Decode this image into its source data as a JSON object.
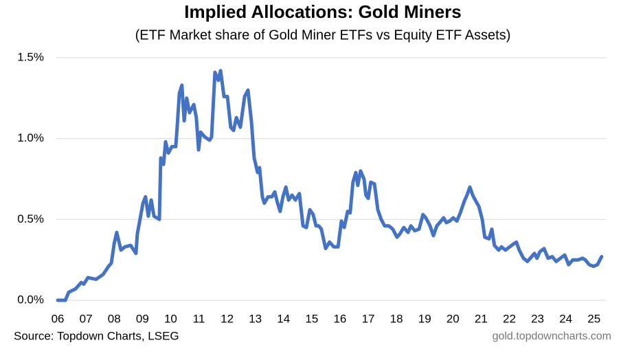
{
  "chart_data": {
    "type": "line",
    "title": "Implied Allocations: Gold Miners",
    "subtitle": "(ETF Market share of Gold Miner ETFs vs Equity ETF Assets)",
    "source": "Source: Topdown Charts, LSEG",
    "watermark": "gold.topdowncharts.com",
    "x": [
      2006.0,
      2006.27,
      2006.39,
      2006.63,
      2006.83,
      2006.92,
      2007.07,
      2007.36,
      2007.61,
      2007.8,
      2007.9,
      2008.0,
      2008.09,
      2008.24,
      2008.38,
      2008.58,
      2008.77,
      2008.82,
      2009.02,
      2009.11,
      2009.21,
      2009.31,
      2009.41,
      2009.6,
      2009.65,
      2009.75,
      2009.82,
      2009.92,
      2010.04,
      2010.18,
      2010.23,
      2010.31,
      2010.4,
      2010.48,
      2010.57,
      2010.67,
      2010.82,
      2010.91,
      2010.99,
      2011.06,
      2011.21,
      2011.38,
      2011.45,
      2011.57,
      2011.69,
      2011.77,
      2011.89,
      2012.01,
      2012.13,
      2012.23,
      2012.33,
      2012.47,
      2012.62,
      2012.74,
      2012.86,
      2012.96,
      2013.08,
      2013.15,
      2013.25,
      2013.32,
      2013.45,
      2013.59,
      2013.69,
      2013.79,
      2013.88,
      2013.98,
      2014.08,
      2014.18,
      2014.3,
      2014.42,
      2014.56,
      2014.69,
      2014.81,
      2014.93,
      2015.05,
      2015.15,
      2015.25,
      2015.34,
      2015.49,
      2015.63,
      2015.78,
      2015.93,
      2016.05,
      2016.15,
      2016.27,
      2016.36,
      2016.46,
      2016.56,
      2016.63,
      2016.73,
      2016.85,
      2016.92,
      2017.0,
      2017.09,
      2017.22,
      2017.34,
      2017.46,
      2017.58,
      2017.73,
      2017.87,
      2018.02,
      2018.12,
      2018.26,
      2018.41,
      2018.51,
      2018.65,
      2018.8,
      2018.94,
      2019.04,
      2019.19,
      2019.31,
      2019.43,
      2019.58,
      2019.67,
      2019.77,
      2019.89,
      2020.01,
      2020.14,
      2020.26,
      2020.4,
      2020.5,
      2020.6,
      2020.7,
      2020.79,
      2020.92,
      2021.04,
      2021.13,
      2021.28,
      2021.38,
      2021.47,
      2021.62,
      2021.72,
      2021.86,
      2022.01,
      2022.16,
      2022.25,
      2022.35,
      2022.5,
      2022.64,
      2022.74,
      2022.89,
      2022.98,
      2023.08,
      2023.23,
      2023.37,
      2023.52,
      2023.66,
      2023.81,
      2023.96,
      2024.1,
      2024.25,
      2024.35,
      2024.44,
      2024.59,
      2024.69,
      2024.83,
      2024.98,
      2025.12,
      2025.27
    ],
    "series": [
      {
        "color": "#4472c4",
        "values": [
          0,
          0,
          0.05,
          0.07,
          0.11,
          0.1,
          0.14,
          0.13,
          0.16,
          0.21,
          0.23,
          0.35,
          0.42,
          0.31,
          0.33,
          0.34,
          0.29,
          0.41,
          0.6,
          0.64,
          0.52,
          0.62,
          0.52,
          0.5,
          0.88,
          0.84,
          0.98,
          0.91,
          0.95,
          0.95,
          1.07,
          1.28,
          1.33,
          1.11,
          1.25,
          1.16,
          1.21,
          1.13,
          0.93,
          1.04,
          1.01,
          0.99,
          1.01,
          1.41,
          1.36,
          1.42,
          1.26,
          1.26,
          1.07,
          1.05,
          1.13,
          1.07,
          1.26,
          1.3,
          1.11,
          0.88,
          0.79,
          0.82,
          0.64,
          0.6,
          0.64,
          0.64,
          0.67,
          0.6,
          0.55,
          0.64,
          0.7,
          0.62,
          0.65,
          0.62,
          0.66,
          0.46,
          0.45,
          0.56,
          0.53,
          0.46,
          0.46,
          0.44,
          0.32,
          0.36,
          0.33,
          0.33,
          0.49,
          0.45,
          0.55,
          0.54,
          0.73,
          0.79,
          0.71,
          0.8,
          0.75,
          0.65,
          0.63,
          0.73,
          0.72,
          0.56,
          0.5,
          0.46,
          0.46,
          0.44,
          0.39,
          0.41,
          0.45,
          0.42,
          0.46,
          0.43,
          0.44,
          0.53,
          0.51,
          0.46,
          0.4,
          0.46,
          0.49,
          0.51,
          0.48,
          0.49,
          0.51,
          0.49,
          0.54,
          0.61,
          0.65,
          0.7,
          0.65,
          0.62,
          0.58,
          0.5,
          0.39,
          0.38,
          0.44,
          0.34,
          0.31,
          0.33,
          0.31,
          0.33,
          0.35,
          0.36,
          0.31,
          0.26,
          0.24,
          0.26,
          0.29,
          0.26,
          0.3,
          0.32,
          0.26,
          0.27,
          0.24,
          0.26,
          0.28,
          0.22,
          0.25,
          0.25,
          0.25,
          0.26,
          0.25,
          0.22,
          0.21,
          0.22,
          0.27
        ]
      }
    ],
    "xlim": [
      2005.95,
      2025.42
    ],
    "xticks": [
      {
        "value": 2006,
        "label": "06"
      },
      {
        "value": 2007,
        "label": "07"
      },
      {
        "value": 2008,
        "label": "08"
      },
      {
        "value": 2009,
        "label": "09"
      },
      {
        "value": 2010,
        "label": "10"
      },
      {
        "value": 2011,
        "label": "11"
      },
      {
        "value": 2012,
        "label": "12"
      },
      {
        "value": 2013,
        "label": "13"
      },
      {
        "value": 2014,
        "label": "14"
      },
      {
        "value": 2015,
        "label": "15"
      },
      {
        "value": 2016,
        "label": "16"
      },
      {
        "value": 2017,
        "label": "17"
      },
      {
        "value": 2018,
        "label": "18"
      },
      {
        "value": 2019,
        "label": "19"
      },
      {
        "value": 2020,
        "label": "20"
      },
      {
        "value": 2021,
        "label": "21"
      },
      {
        "value": 2022,
        "label": "22"
      },
      {
        "value": 2023,
        "label": "23"
      },
      {
        "value": 2024,
        "label": "24"
      },
      {
        "value": 2025,
        "label": "25"
      }
    ],
    "ylim": [
      0,
      1.5
    ],
    "yticks": [
      {
        "value": 0,
        "label": "0.0%"
      },
      {
        "value": 0.5,
        "label": "0.5%"
      },
      {
        "value": 1.0,
        "label": "1.0%"
      },
      {
        "value": 1.5,
        "label": "1.5%"
      }
    ],
    "grid": true
  }
}
